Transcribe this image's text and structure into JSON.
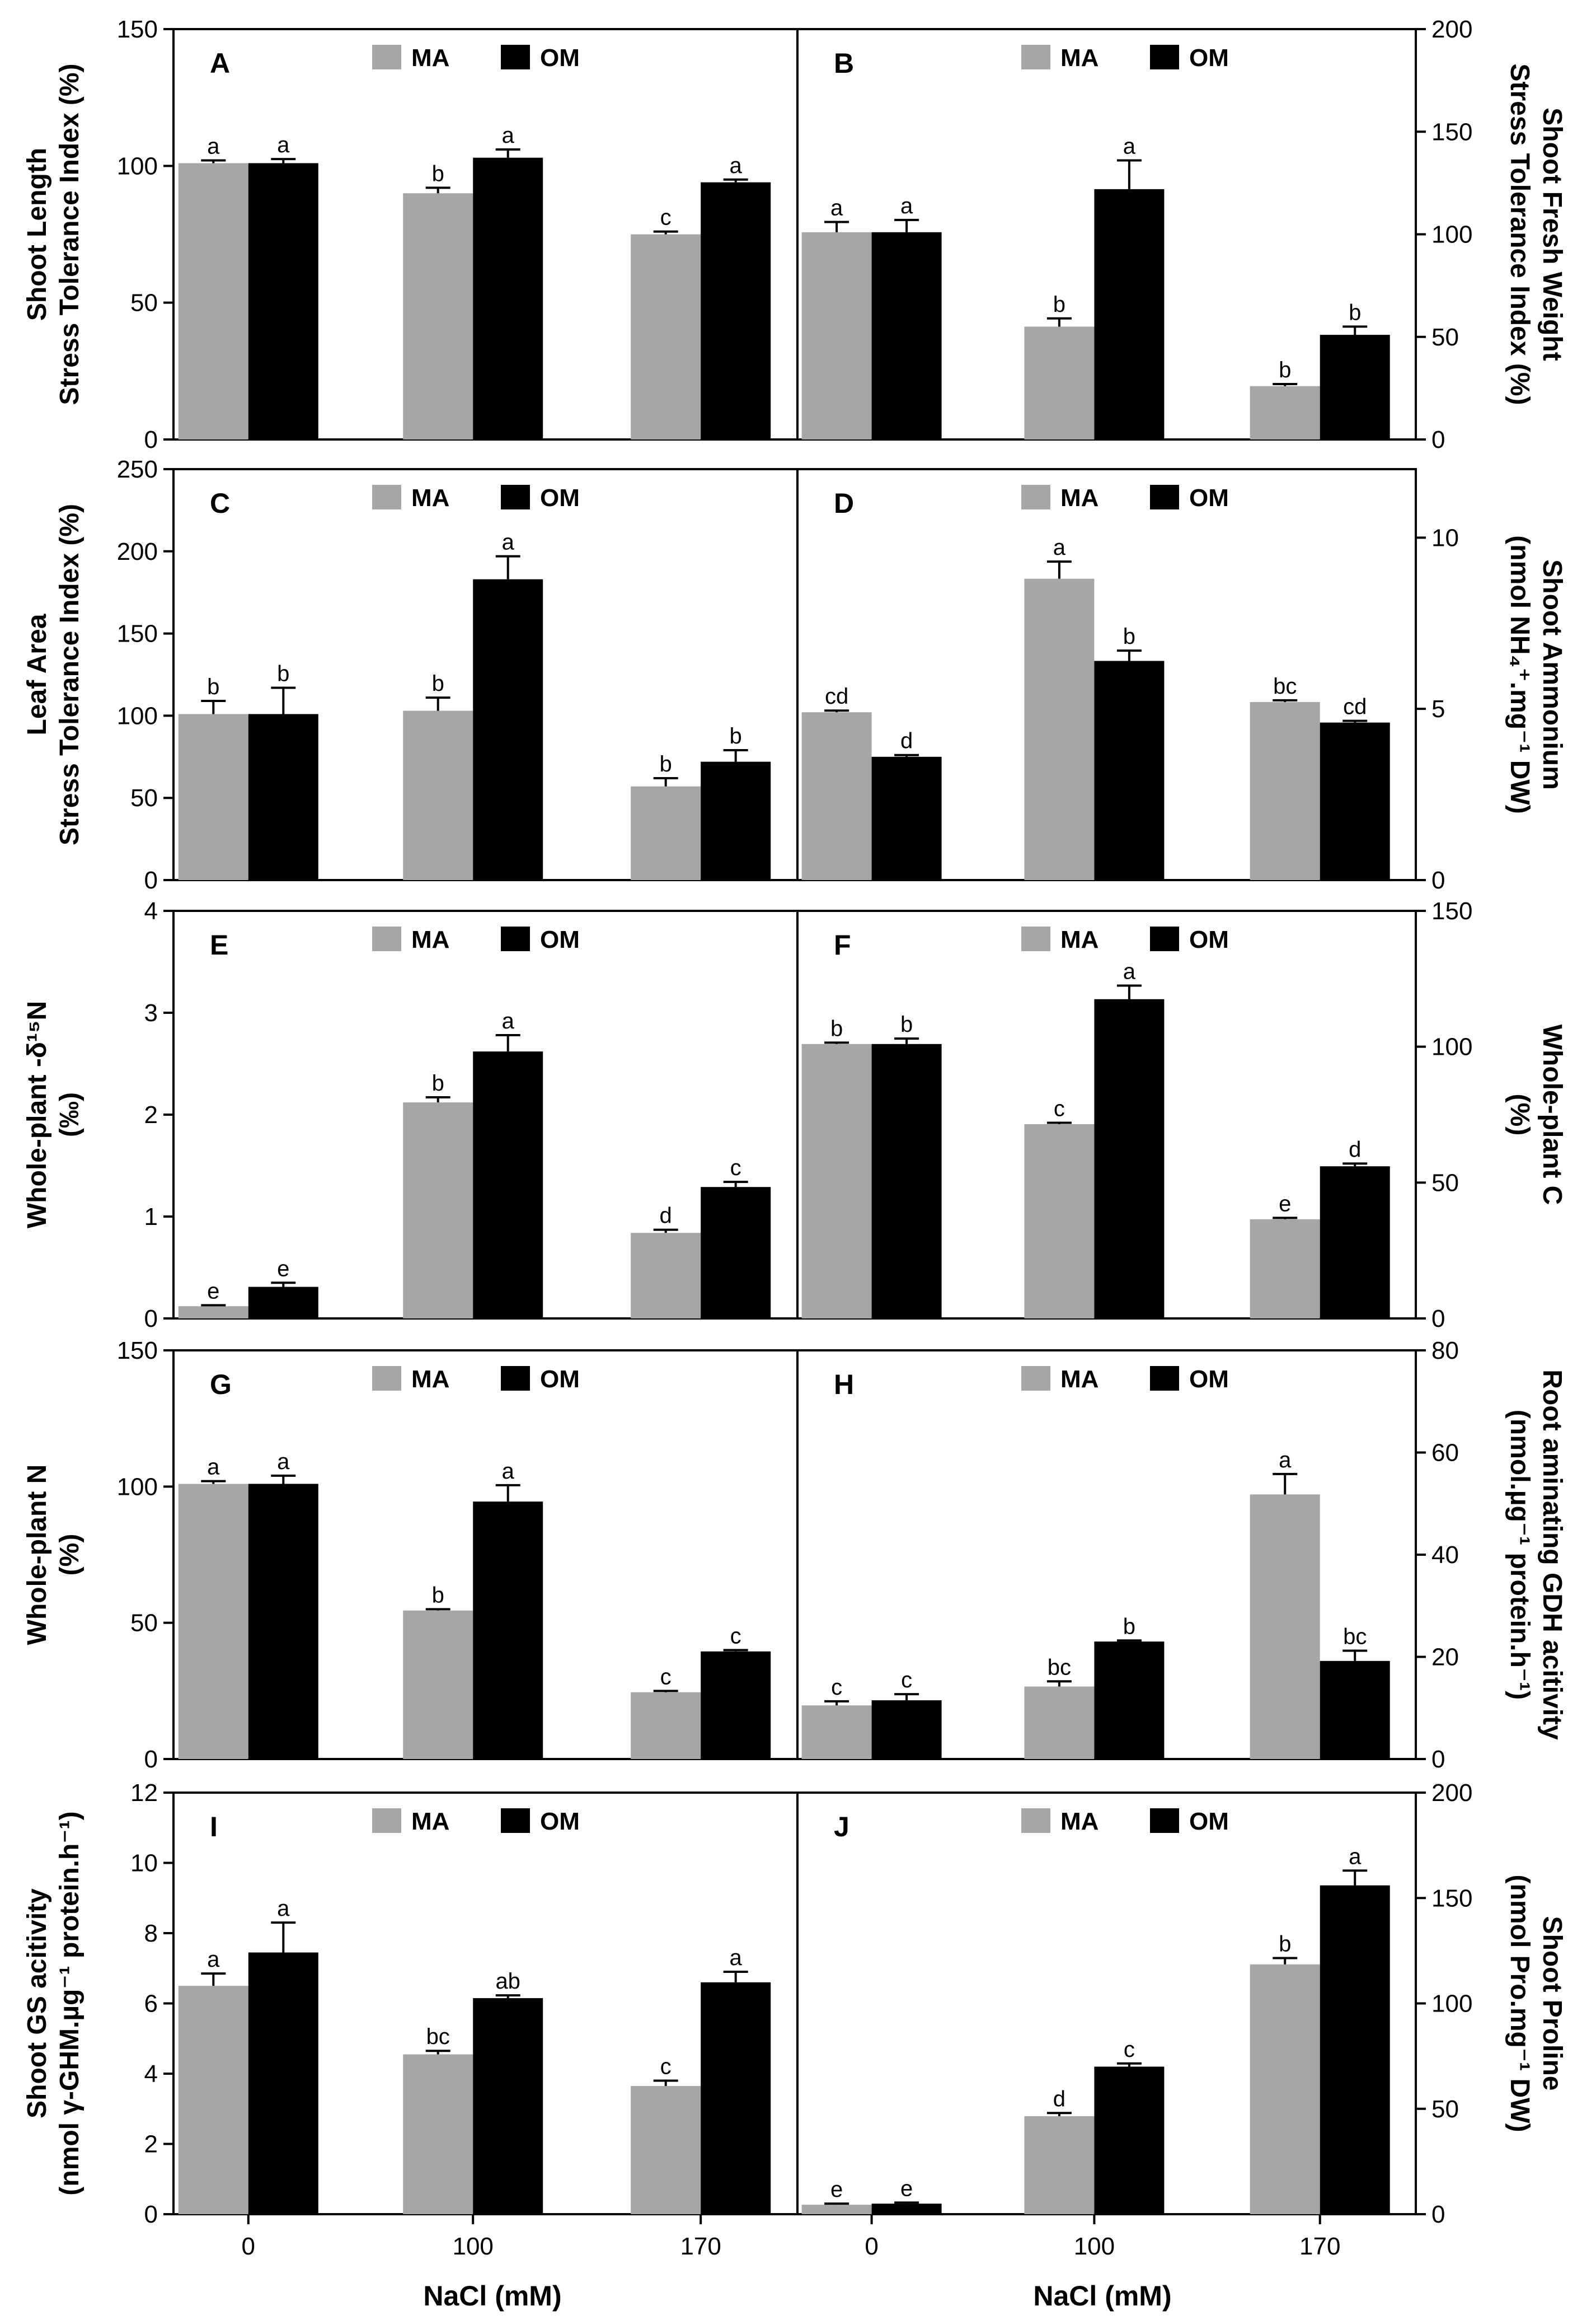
{
  "figure": {
    "series_colors": {
      "MA": "#a6a6a6",
      "OM": "#000000"
    },
    "xlabel": "NaCl (mM)"
  },
  "chart_data": [
    {
      "panel": "A",
      "type": "bar",
      "categories": [
        "0",
        "100",
        "170"
      ],
      "ylabel_lines": [
        "Shoot Length",
        "Stress Tolerance Index (%)"
      ],
      "ylim": [
        0,
        150
      ],
      "yticks": [
        0,
        50,
        100,
        150
      ],
      "series": [
        {
          "name": "MA",
          "values": [
            101,
            90,
            75
          ],
          "errors": [
            1,
            2,
            1
          ],
          "labels": [
            "a",
            "b",
            "c"
          ]
        },
        {
          "name": "OM",
          "values": [
            101,
            103,
            94
          ],
          "errors": [
            1.5,
            3,
            1
          ],
          "labels": [
            "a",
            "a",
            "a"
          ]
        }
      ]
    },
    {
      "panel": "B",
      "type": "bar",
      "categories": [
        "0",
        "100",
        "170"
      ],
      "ylabel_lines": [
        "Shoot Fresh Weight",
        "Stress Tolerance Index (%)"
      ],
      "ylim": [
        0,
        200
      ],
      "yticks": [
        0,
        50,
        100,
        150,
        200
      ],
      "series": [
        {
          "name": "MA",
          "values": [
            101,
            55,
            26
          ],
          "errors": [
            5,
            4,
            1
          ],
          "labels": [
            "a",
            "b",
            "b"
          ]
        },
        {
          "name": "OM",
          "values": [
            101,
            122,
            51
          ],
          "errors": [
            6,
            14,
            4
          ],
          "labels": [
            "a",
            "a",
            "b"
          ]
        }
      ]
    },
    {
      "panel": "C",
      "type": "bar",
      "categories": [
        "0",
        "100",
        "170"
      ],
      "ylabel_lines": [
        "Leaf Area",
        "Stress Tolerance Index (%)"
      ],
      "ylim": [
        0,
        250
      ],
      "yticks": [
        0,
        50,
        100,
        150,
        200,
        250
      ],
      "series": [
        {
          "name": "MA",
          "values": [
            101,
            103,
            57
          ],
          "errors": [
            8,
            8,
            5
          ],
          "labels": [
            "b",
            "b",
            "b"
          ]
        },
        {
          "name": "OM",
          "values": [
            101,
            183,
            72
          ],
          "errors": [
            16,
            14,
            7
          ],
          "labels": [
            "b",
            "a",
            "b"
          ]
        }
      ]
    },
    {
      "panel": "D",
      "type": "bar",
      "categories": [
        "0",
        "100",
        "170"
      ],
      "ylabel_lines": [
        "Shoot Ammonium",
        "(nmol NH₄⁺.mg⁻¹ DW)"
      ],
      "ylim": [
        0,
        12
      ],
      "yticks": [
        0,
        5,
        10
      ],
      "series": [
        {
          "name": "MA",
          "values": [
            4.9,
            8.8,
            5.2
          ],
          "errors": [
            0.05,
            0.5,
            0.05
          ],
          "labels": [
            "cd",
            "a",
            "bc"
          ]
        },
        {
          "name": "OM",
          "values": [
            3.6,
            6.4,
            4.6
          ],
          "errors": [
            0.05,
            0.3,
            0.05
          ],
          "labels": [
            "d",
            "b",
            "cd"
          ]
        }
      ]
    },
    {
      "panel": "E",
      "type": "bar",
      "categories": [
        "0",
        "100",
        "170"
      ],
      "ylabel_lines": [
        "Whole-plant -δ¹⁵N",
        "(‰)"
      ],
      "ylim": [
        0,
        4
      ],
      "yticks": [
        0,
        1,
        2,
        3,
        4
      ],
      "series": [
        {
          "name": "MA",
          "values": [
            0.12,
            2.12,
            0.84
          ],
          "errors": [
            0.01,
            0.05,
            0.03
          ],
          "labels": [
            "e",
            "b",
            "d"
          ]
        },
        {
          "name": "OM",
          "values": [
            0.31,
            2.62,
            1.29
          ],
          "errors": [
            0.04,
            0.16,
            0.05
          ],
          "labels": [
            "e",
            "a",
            "c"
          ]
        }
      ]
    },
    {
      "panel": "F",
      "type": "bar",
      "categories": [
        "0",
        "100",
        "170"
      ],
      "ylabel_lines": [
        "Whole-plant C",
        "(%)"
      ],
      "ylim": [
        0,
        150
      ],
      "yticks": [
        0,
        50,
        100,
        150
      ],
      "series": [
        {
          "name": "MA",
          "values": [
            101,
            71.5,
            36.5
          ],
          "errors": [
            0.5,
            0.5,
            0.5
          ],
          "labels": [
            "b",
            "c",
            "e"
          ]
        },
        {
          "name": "OM",
          "values": [
            101,
            117.5,
            56
          ],
          "errors": [
            2,
            5,
            1
          ],
          "labels": [
            "b",
            "a",
            "d"
          ]
        }
      ]
    },
    {
      "panel": "G",
      "type": "bar",
      "categories": [
        "0",
        "100",
        "170"
      ],
      "ylabel_lines": [
        "Whole-plant N",
        "(%)"
      ],
      "ylim": [
        0,
        150
      ],
      "yticks": [
        0,
        50,
        100,
        150
      ],
      "series": [
        {
          "name": "MA",
          "values": [
            101,
            54.5,
            24.5
          ],
          "errors": [
            1,
            0.5,
            0.5
          ],
          "labels": [
            "a",
            "b",
            "c"
          ]
        },
        {
          "name": "OM",
          "values": [
            101,
            94.5,
            39.5
          ],
          "errors": [
            3,
            6,
            0.5
          ],
          "labels": [
            "a",
            "a",
            "c"
          ]
        }
      ]
    },
    {
      "panel": "H",
      "type": "bar",
      "categories": [
        "0",
        "100",
        "170"
      ],
      "ylabel_lines": [
        "Root aminating GDH acitivity",
        "(nmol.µg⁻¹ protein.h⁻¹)"
      ],
      "ylim": [
        0,
        80
      ],
      "yticks": [
        0,
        20,
        40,
        60,
        80
      ],
      "series": [
        {
          "name": "MA",
          "values": [
            10.5,
            14.2,
            51.8
          ],
          "errors": [
            0.8,
            1,
            4
          ],
          "labels": [
            "c",
            "bc",
            "a"
          ]
        },
        {
          "name": "OM",
          "values": [
            11.5,
            23,
            19.2
          ],
          "errors": [
            1.2,
            0.2,
            2
          ],
          "labels": [
            "c",
            "b",
            "bc"
          ]
        }
      ]
    },
    {
      "panel": "I",
      "type": "bar",
      "categories": [
        "0",
        "100",
        "170"
      ],
      "ylabel_lines": [
        "Shoot GS acitivity",
        "(nmol γ-GHM.µg⁻¹ protein.h⁻¹)"
      ],
      "ylim": [
        0,
        12
      ],
      "yticks": [
        0,
        2,
        4,
        6,
        8,
        10,
        12
      ],
      "series": [
        {
          "name": "MA",
          "values": [
            6.5,
            4.55,
            3.65
          ],
          "errors": [
            0.35,
            0.1,
            0.15
          ],
          "labels": [
            "a",
            "bc",
            "c"
          ]
        },
        {
          "name": "OM",
          "values": [
            7.45,
            6.15,
            6.6
          ],
          "errors": [
            0.85,
            0.08,
            0.3
          ],
          "labels": [
            "a",
            "ab",
            "a"
          ]
        }
      ]
    },
    {
      "panel": "J",
      "type": "bar",
      "categories": [
        "0",
        "100",
        "170"
      ],
      "ylabel_lines": [
        "Shoot Proline",
        "(nmol Pro.mg⁻¹ DW)"
      ],
      "ylim": [
        0,
        200
      ],
      "yticks": [
        0,
        50,
        100,
        150,
        200
      ],
      "series": [
        {
          "name": "MA",
          "values": [
            4.5,
            46.5,
            118.5
          ],
          "errors": [
            0.5,
            1.5,
            3
          ],
          "labels": [
            "e",
            "d",
            "b"
          ]
        },
        {
          "name": "OM",
          "values": [
            5,
            70,
            156
          ],
          "errors": [
            0.5,
            1.5,
            7
          ],
          "labels": [
            "e",
            "c",
            "a"
          ]
        }
      ]
    }
  ]
}
